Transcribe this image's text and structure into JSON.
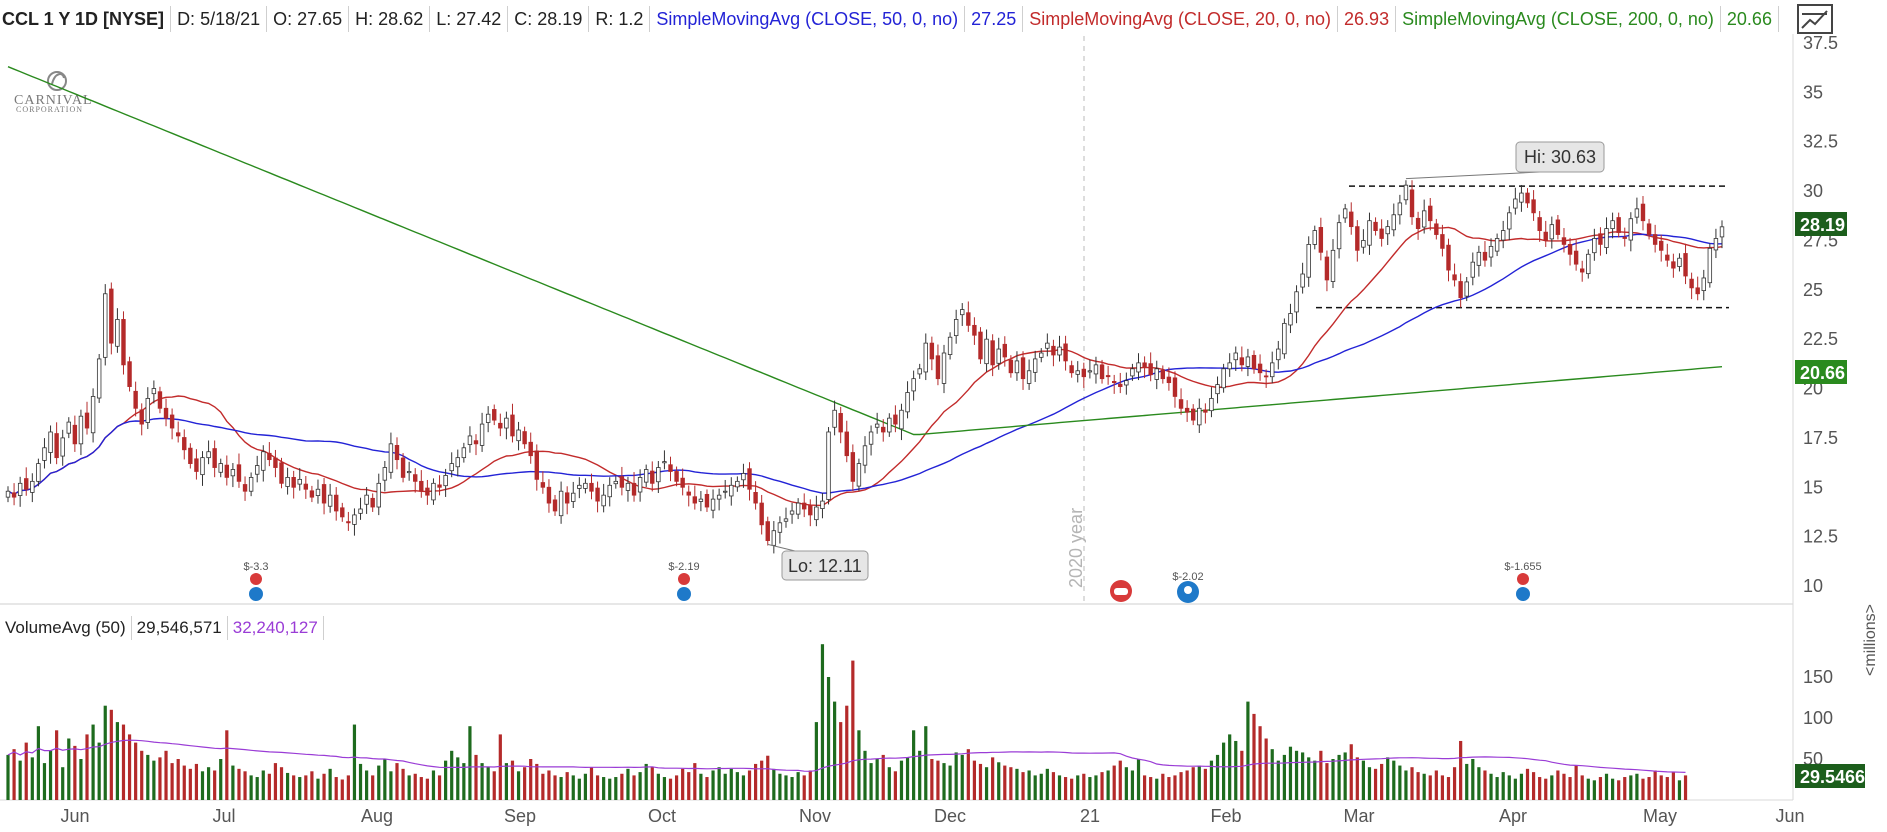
{
  "header": {
    "symbol": "CCL 1 Y 1D [NYSE]",
    "date": "D: 5/18/21",
    "open": "O: 27.65",
    "high": "H: 28.62",
    "low": "L: 27.42",
    "close": "C: 28.19",
    "range": "R: 1.2",
    "sma50_label": "SimpleMovingAvg (CLOSE, 50, 0, no)",
    "sma50_value": "27.25",
    "sma20_label": "SimpleMovingAvg (CLOSE, 20, 0, no)",
    "sma20_value": "26.93",
    "sma200_label": "SimpleMovingAvg (CLOSE, 200, 0, no)",
    "sma200_value": "20.66"
  },
  "volume_header": {
    "label": "VolumeAvg (50)",
    "volume": "29,546,571",
    "avg": "32,240,127"
  },
  "colors": {
    "sma50": "#2323d6",
    "sma20": "#c22b2b",
    "sma200": "#2a8a1e",
    "up": "#1e6b1e",
    "down": "#b42a2a",
    "vol_avg": "#9a3cd6"
  },
  "logo": {
    "line1": "CARNIVAL",
    "line2": "CORPORATION"
  },
  "annotations": {
    "hi": "Hi: 30.63",
    "lo": "Lo: 12.11",
    "year": "2020 year",
    "last_price": "28.19",
    "sma200_badge": "20.66",
    "volume_badge": "29.5466",
    "millions": "<millions>"
  },
  "earnings": [
    {
      "label": "$-3.3"
    },
    {
      "label": "$-2.19"
    },
    {
      "label": "$-2.02"
    },
    {
      "label": "$-1.655"
    }
  ],
  "chart_data": {
    "type": "candlestick",
    "title": "CCL 1 Y 1D [NYSE]",
    "x_ticks": [
      "Jun",
      "Jul",
      "Aug",
      "Sep",
      "Oct",
      "Nov",
      "Dec",
      "21",
      "Feb",
      "Mar",
      "Apr",
      "May",
      "Jun"
    ],
    "y_ticks": [
      10,
      12.5,
      15,
      17.5,
      20,
      22.5,
      25,
      27.5,
      30,
      32.5,
      35,
      37.5
    ],
    "y_tick_labels": [
      "10",
      "12.5",
      "15",
      "17.5",
      "20",
      "22.5",
      "25",
      "27.5",
      "30",
      "32.5",
      "35",
      "37.5"
    ],
    "ylim": [
      9.5,
      38.5
    ],
    "closes": [
      14.8,
      14.5,
      15.2,
      14.9,
      15.3,
      16.2,
      17.0,
      17.8,
      16.5,
      17.5,
      18.3,
      17.2,
      18.6,
      18.0,
      19.6,
      21.5,
      24.8,
      22.3,
      23.5,
      21.2,
      20.1,
      19.0,
      18.2,
      19.5,
      20.0,
      19.0,
      18.5,
      18.0,
      17.6,
      16.9,
      16.2,
      15.8,
      16.5,
      16.8,
      16.0,
      16.2,
      15.5,
      15.9,
      15.3,
      14.8,
      15.5,
      16.1,
      16.8,
      16.4,
      16.0,
      15.2,
      15.5,
      15.0,
      15.4,
      14.9,
      14.5,
      14.9,
      14.2,
      14.6,
      13.8,
      13.5,
      13.2,
      13.6,
      13.9,
      14.6,
      14.0,
      15.2,
      16.0,
      17.2,
      16.4,
      15.5,
      15.8,
      15.3,
      14.8,
      14.6,
      15.2,
      15.0,
      15.6,
      16.2,
      16.5,
      17.0,
      17.6,
      17.2,
      18.2,
      18.7,
      18.4,
      18.0,
      18.5,
      17.6,
      17.9,
      17.2,
      16.6,
      15.4,
      15.0,
      14.2,
      13.8,
      14.8,
      14.2,
      14.7,
      15.1,
      15.2,
      14.8,
      14.3,
      14.6,
      15.1,
      15.3,
      15.0,
      15.2,
      14.6,
      15.5,
      15.9,
      15.2,
      16.0,
      16.3,
      15.8,
      15.3,
      15.0,
      14.6,
      14.2,
      14.4,
      14.0,
      14.4,
      14.6,
      14.8,
      15.1,
      15.3,
      15.7,
      14.9,
      14.2,
      13.1,
      12.3,
      12.8,
      13.2,
      13.4,
      13.8,
      14.2,
      13.9,
      13.6,
      14.0,
      14.3,
      17.8,
      18.9,
      17.8,
      16.6,
      15.3,
      16.2,
      17.1,
      17.8,
      18.2,
      17.8,
      18.5,
      18.2,
      18.9,
      19.8,
      20.5,
      21.0,
      22.3,
      21.5,
      20.5,
      21.8,
      22.6,
      23.5,
      24.0,
      23.2,
      22.7,
      21.5,
      22.5,
      21.2,
      22.0,
      21.6,
      20.8,
      21.4,
      20.5,
      20.9,
      21.5,
      21.8,
      22.3,
      21.7,
      22.1,
      21.4,
      20.8,
      20.9,
      20.6,
      20.9,
      21.2,
      20.5,
      20.6,
      20.3,
      20.1,
      20.4,
      21.0,
      21.3,
      21.1,
      20.7,
      21.0,
      20.5,
      20.3,
      19.6,
      19.0,
      18.8,
      18.4,
      19.0,
      18.8,
      19.5,
      20.2,
      21.0,
      21.3,
      21.8,
      21.2,
      21.6,
      21.0,
      20.8,
      20.6,
      21.3,
      22.0,
      23.3,
      23.8,
      24.9,
      25.8,
      27.3,
      28.0,
      26.9,
      25.5,
      27.0,
      28.4,
      29.1,
      28.2,
      27.0,
      27.5,
      28.5,
      28.0,
      27.6,
      28.2,
      28.8,
      29.4,
      30.3,
      28.7,
      28.1,
      29.0,
      28.5,
      27.8,
      27.1,
      26.0,
      25.5,
      24.6,
      25.4,
      26.4,
      26.9,
      26.5,
      27.2,
      27.6,
      28.0,
      28.9,
      29.6,
      29.9,
      29.4,
      28.9,
      28.0,
      27.5,
      28.3,
      27.8,
      27.3,
      26.8,
      26.3,
      25.9,
      26.8,
      27.6,
      27.3,
      28.1,
      28.5,
      27.9,
      27.6,
      28.6,
      29.1,
      28.5,
      27.8,
      27.3,
      27.0,
      26.5,
      26.1,
      26.6,
      25.7,
      25.1,
      24.8,
      25.6,
      27.1,
      27.6,
      28.19
    ],
    "volumes": [
      55,
      62,
      48,
      70,
      52,
      90,
      45,
      60,
      85,
      40,
      75,
      66,
      50,
      80,
      92,
      70,
      115,
      110,
      95,
      92,
      80,
      70,
      60,
      55,
      48,
      52,
      60,
      45,
      50,
      42,
      38,
      44,
      35,
      40,
      36,
      50,
      85,
      42,
      38,
      35,
      30,
      28,
      36,
      32,
      45,
      40,
      33,
      30,
      28,
      30,
      35,
      26,
      32,
      38,
      28,
      25,
      30,
      92,
      44,
      36,
      30,
      42,
      50,
      35,
      45,
      38,
      30,
      32,
      28,
      26,
      36,
      30,
      48,
      60,
      52,
      45,
      90,
      55,
      45,
      40,
      35,
      80,
      45,
      48,
      35,
      40,
      50,
      44,
      32,
      36,
      30,
      28,
      34,
      30,
      26,
      32,
      40,
      30,
      28,
      26,
      28,
      32,
      38,
      30,
      34,
      44,
      40,
      32,
      28,
      26,
      30,
      38,
      34,
      45,
      32,
      28,
      36,
      40,
      32,
      38,
      34,
      30,
      36,
      44,
      48,
      54,
      38,
      32,
      30,
      28,
      34,
      30,
      36,
      95,
      190,
      150,
      120,
      95,
      115,
      170,
      85,
      60,
      45,
      50,
      55,
      40,
      35,
      48,
      52,
      85,
      60,
      90,
      50,
      48,
      45,
      42,
      58,
      55,
      62,
      48,
      44,
      40,
      52,
      46,
      42,
      40,
      38,
      34,
      36,
      30,
      32,
      38,
      34,
      30,
      28,
      26,
      30,
      32,
      28,
      30,
      34,
      36,
      42,
      48,
      40,
      36,
      50,
      30,
      28,
      26,
      32,
      28,
      30,
      34,
      36,
      40,
      42,
      38,
      48,
      55,
      70,
      80,
      72,
      60,
      120,
      105,
      90,
      75,
      62,
      48,
      55,
      65,
      60,
      58,
      52,
      48,
      60,
      45,
      50,
      55,
      58,
      68,
      52,
      48,
      40,
      38,
      44,
      52,
      48,
      42,
      36,
      40,
      34,
      32,
      30,
      36,
      30,
      28,
      40,
      72,
      44,
      50,
      40,
      36,
      32,
      28,
      34,
      30,
      26,
      32,
      38,
      34,
      28,
      26,
      30,
      36,
      32,
      28,
      42,
      30,
      26,
      24,
      28,
      32,
      26,
      24,
      28,
      30,
      32,
      26,
      28,
      36,
      30,
      28,
      34,
      24,
      30
    ]
  }
}
